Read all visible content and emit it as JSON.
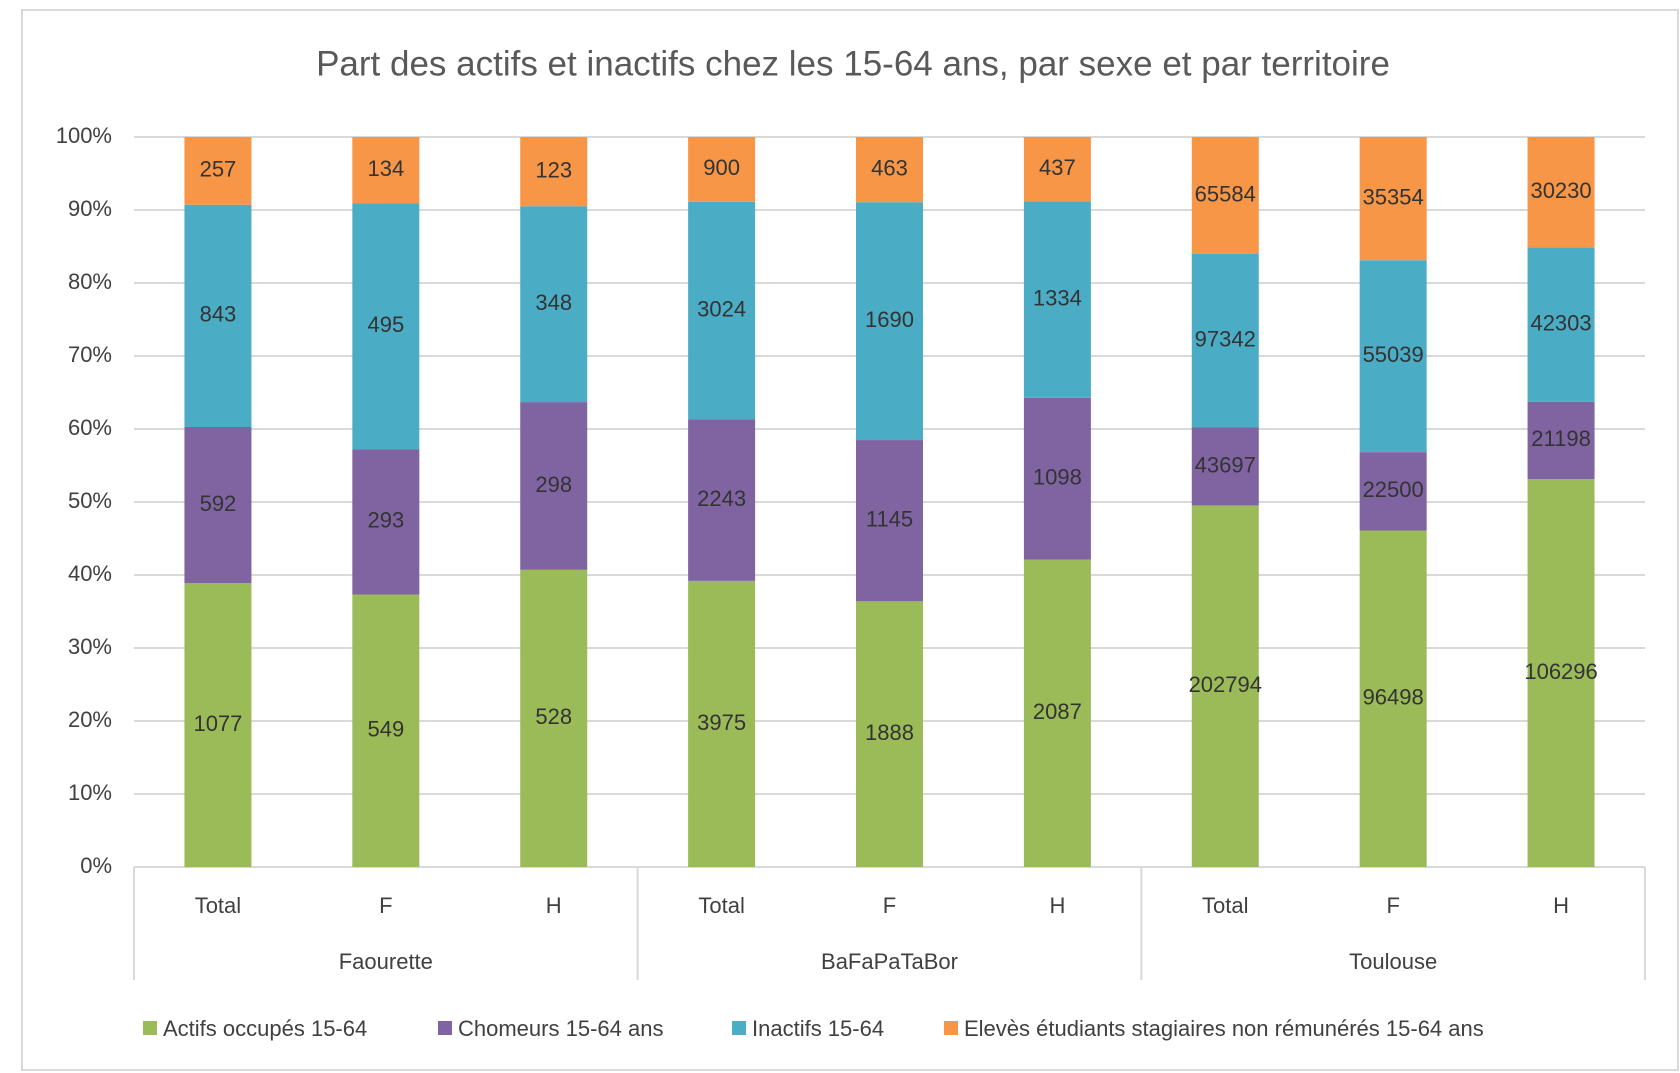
{
  "chart_data": {
    "type": "stacked_percent_bar",
    "title": "Part des actifs et inactifs chez les 15-64 ans, par sexe et par territoire",
    "groups": [
      {
        "label": "Faourette",
        "categories": [
          "Total",
          "F",
          "H"
        ]
      },
      {
        "label": "BaFaPaTaBor",
        "categories": [
          "Total",
          "F",
          "H"
        ]
      },
      {
        "label": "Toulouse",
        "categories": [
          "Total",
          "F",
          "H"
        ]
      }
    ],
    "series": [
      {
        "name": "Actifs occupés 15-64",
        "color": "#9bbb59",
        "values": [
          1077,
          549,
          528,
          3975,
          1888,
          2087,
          202794,
          96498,
          106296
        ]
      },
      {
        "name": "Chomeurs 15-64 ans",
        "color": "#8064a2",
        "values": [
          592,
          293,
          298,
          2243,
          1145,
          1098,
          43697,
          22500,
          21198
        ]
      },
      {
        "name": "Inactifs 15-64",
        "color": "#4bacc6",
        "values": [
          843,
          495,
          348,
          3024,
          1690,
          1334,
          97342,
          55039,
          42303
        ]
      },
      {
        "name": "Elevès étudiants stagiaires non rémunérés 15-64 ans",
        "color": "#f79646",
        "values": [
          257,
          134,
          123,
          900,
          463,
          437,
          65584,
          35354,
          30230
        ]
      }
    ],
    "ylim": [
      0,
      100
    ],
    "yticks": [
      {
        "value": 0,
        "label": "0%"
      },
      {
        "value": 10,
        "label": "10%"
      },
      {
        "value": 20,
        "label": "20%"
      },
      {
        "value": 30,
        "label": "30%"
      },
      {
        "value": 40,
        "label": "40%"
      },
      {
        "value": 50,
        "label": "50%"
      },
      {
        "value": 60,
        "label": "60%"
      },
      {
        "value": 70,
        "label": "70%"
      },
      {
        "value": 80,
        "label": "80%"
      },
      {
        "value": 90,
        "label": "90%"
      },
      {
        "value": 100,
        "label": "100%"
      }
    ],
    "grid": true,
    "legend": "bottom"
  }
}
